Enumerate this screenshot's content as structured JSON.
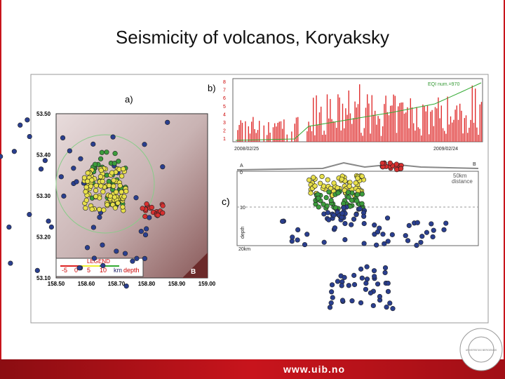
{
  "header": {
    "title": "Seismicity of volcanos, Koryaksky"
  },
  "figure": {
    "panel_a": {
      "label": "a)",
      "lat_ticks": [
        "53.50",
        "53.40",
        "53.30",
        "53.20",
        "53.10"
      ],
      "lon_ticks": [
        "158.50",
        "158.60",
        "158.70",
        "158.80",
        "158.90",
        "159.00"
      ],
      "corner_label": "B",
      "legend": {
        "title": "LEGEND",
        "scale": [
          "-5",
          "0",
          "5",
          "10"
        ],
        "unit": "km",
        "label": "depth"
      }
    },
    "panel_b": {
      "label": "b)",
      "y_ticks": [
        "8",
        "7",
        "6",
        "5",
        "4",
        "3",
        "2",
        "1"
      ],
      "start_date": "2008/02/25",
      "end_date": "2009/02/24",
      "count_label": "EQI num.=970"
    },
    "panel_c": {
      "label": "c)",
      "end_a": "A",
      "end_b": "B",
      "depth_ticks": [
        "0",
        "10",
        "20km"
      ],
      "axis_label": "depth",
      "scale_value": "50km",
      "scale_label": "distance"
    }
  },
  "footer": {
    "url": "www.uib.no",
    "logo_text": "UNIVERSITAS BERGENSIS"
  }
}
